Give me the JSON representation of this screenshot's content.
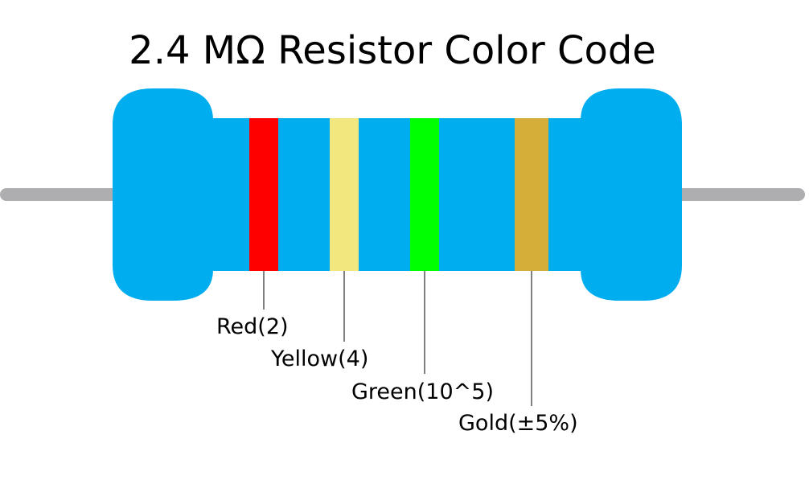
{
  "title": "2.4 MΩ Resistor Color Code",
  "colors": {
    "body": "#00aeef",
    "lead": "#aeaeb0",
    "background": "#ffffff",
    "text": "#000000"
  },
  "bands": [
    {
      "label": "Red(2)",
      "color_name": "red",
      "color": "#ff0000"
    },
    {
      "label": "Yellow(4)",
      "color_name": "yellow",
      "color": "#f2e67e"
    },
    {
      "label": "Green(10^5)",
      "color_name": "green",
      "color": "#00ff00"
    },
    {
      "label": "Gold(±5%)",
      "color_name": "gold",
      "color": "#d4ae38"
    }
  ]
}
